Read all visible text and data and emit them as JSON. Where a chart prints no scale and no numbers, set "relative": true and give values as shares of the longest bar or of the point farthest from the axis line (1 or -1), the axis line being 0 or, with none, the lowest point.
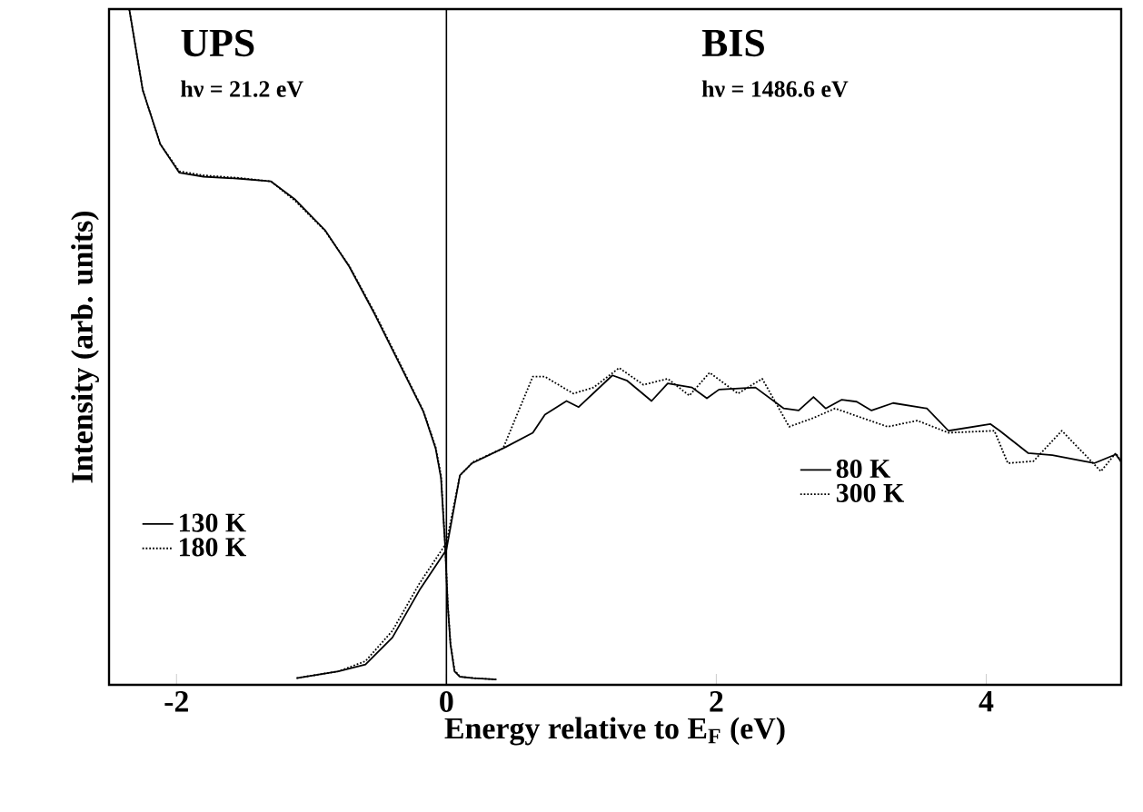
{
  "chart_data": {
    "type": "line",
    "relative": true,
    "xlabel": "Energy relative to E$_{F}$ (eV)",
    "ylabel": "Intensity (arb. units)",
    "xlim": [
      -2.5,
      5
    ],
    "xticks": [
      -2,
      0,
      2,
      4
    ],
    "legend": "bottom",
    "marker": "none",
    "annotations": [
      "UPS",
      "hν  = 21.2 eV",
      "BIS",
      "hν  = 1486.6 eV"
    ],
    "ref_lines": [
      {
        "axis": "x",
        "value": 0,
        "color": "#000000"
      }
    ],
    "series": [
      {
        "name": "130 K",
        "color": "#000000",
        "line_style": "solid",
        "x": [
          -2.35,
          -2.25,
          -2.12,
          -1.98,
          -1.8,
          -1.53,
          -1.3,
          -1.12,
          -0.9,
          -0.72,
          -0.53,
          -0.35,
          -0.17,
          -0.08,
          -0.04,
          -0.01,
          0.01,
          0.03,
          0.06,
          0.1,
          0.2,
          0.37
        ],
        "values": [
          1.0,
          0.88,
          0.8,
          0.758,
          0.752,
          0.749,
          0.745,
          0.718,
          0.673,
          0.619,
          0.548,
          0.476,
          0.404,
          0.35,
          0.306,
          0.207,
          0.118,
          0.06,
          0.02,
          0.012,
          0.01,
          0.008
        ]
      },
      {
        "name": "180 K",
        "color": "#000000",
        "line_style": "dotted",
        "x": [
          -2.35,
          -2.25,
          -2.12,
          -1.98,
          -1.8,
          -1.53,
          -1.3,
          -1.12,
          -0.9,
          -0.72,
          -0.53,
          -0.35,
          -0.17,
          -0.08,
          -0.04,
          -0.01,
          0.01,
          0.03,
          0.06,
          0.1,
          0.2,
          0.37
        ],
        "values": [
          1.0,
          0.88,
          0.8,
          0.76,
          0.754,
          0.75,
          0.745,
          0.716,
          0.672,
          0.62,
          0.55,
          0.478,
          0.405,
          0.352,
          0.31,
          0.21,
          0.12,
          0.062,
          0.022,
          0.012,
          0.01,
          0.008
        ]
      },
      {
        "name": "80 K",
        "color": "#000000",
        "line_style": "solid",
        "x": [
          -1.11,
          -0.8,
          -0.6,
          -0.4,
          -0.2,
          0,
          0.1,
          0.19,
          0.44,
          0.64,
          0.73,
          0.89,
          0.98,
          1.23,
          1.34,
          1.52,
          1.64,
          1.82,
          1.93,
          2.02,
          2.29,
          2.5,
          2.61,
          2.72,
          2.81,
          2.93,
          3.04,
          3.15,
          3.31,
          3.56,
          3.72,
          4.03,
          4.1,
          4.31,
          4.49,
          4.8,
          4.96,
          5.0
        ],
        "values": [
          0.01,
          0.02,
          0.03,
          0.07,
          0.14,
          0.2,
          0.31,
          0.328,
          0.352,
          0.373,
          0.4,
          0.42,
          0.411,
          0.458,
          0.45,
          0.42,
          0.446,
          0.44,
          0.424,
          0.437,
          0.44,
          0.409,
          0.406,
          0.426,
          0.409,
          0.422,
          0.419,
          0.406,
          0.417,
          0.409,
          0.376,
          0.386,
          0.376,
          0.343,
          0.34,
          0.328,
          0.341,
          0.33
        ]
      },
      {
        "name": "300 K",
        "color": "#000000",
        "line_style": "dotted",
        "x": [
          -1.11,
          -0.8,
          -0.6,
          -0.4,
          -0.2,
          0,
          0.1,
          0.2,
          0.42,
          0.64,
          0.73,
          0.94,
          1.09,
          1.28,
          1.46,
          1.64,
          1.8,
          1.95,
          2.16,
          2.34,
          2.54,
          2.72,
          2.88,
          3.08,
          3.27,
          3.49,
          3.72,
          4.06,
          4.16,
          4.35,
          4.56,
          4.85,
          4.96,
          5.0
        ],
        "values": [
          0.01,
          0.02,
          0.035,
          0.08,
          0.15,
          0.21,
          0.31,
          0.33,
          0.35,
          0.456,
          0.456,
          0.431,
          0.44,
          0.469,
          0.444,
          0.453,
          0.428,
          0.462,
          0.431,
          0.453,
          0.382,
          0.395,
          0.409,
          0.395,
          0.382,
          0.391,
          0.373,
          0.376,
          0.328,
          0.331,
          0.376,
          0.316,
          0.343,
          0.33
        ]
      }
    ]
  }
}
